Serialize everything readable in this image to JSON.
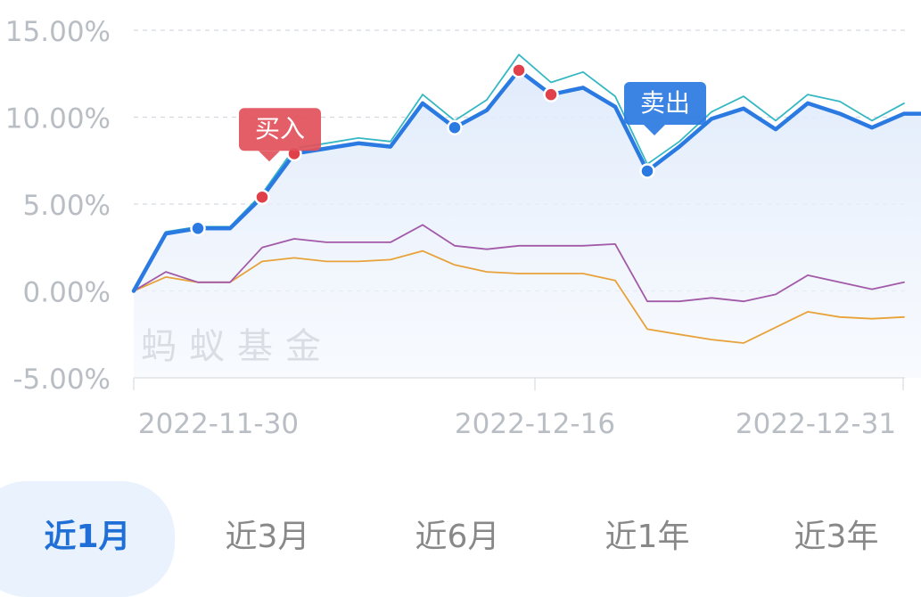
{
  "chart_data": {
    "type": "line",
    "x_ticks": [
      "2022-11-30",
      "2022-12-16",
      "2022-12-31"
    ],
    "y_ticks": [
      "15.00%",
      "10.00%",
      "5.00%",
      "0.00%",
      "-5.00%"
    ],
    "ylim": [
      -5,
      15
    ],
    "grid": true,
    "watermark": "蚂蚁基金",
    "series": [
      {
        "color": "#2a7ae2",
        "values": [
          0,
          3.3,
          3.6,
          3.6,
          5.4,
          7.9,
          8.2,
          8.5,
          8.3,
          10.8,
          9.4,
          10.4,
          12.7,
          11.3,
          11.7,
          10.6,
          6.9,
          8.3,
          9.9,
          10.5,
          9.3,
          10.8,
          10.2,
          9.4,
          10.2,
          10.2
        ]
      },
      {
        "color": "#36b8c4",
        "values": [
          0,
          3.4,
          3.7,
          3.7,
          5.6,
          8.2,
          8.5,
          8.8,
          8.6,
          11.3,
          9.8,
          11.0,
          13.6,
          12.0,
          12.6,
          11.2,
          7.3,
          8.6,
          10.3,
          11.2,
          9.8,
          11.3,
          10.9,
          9.8,
          10.8
        ]
      },
      {
        "color": "#a25aa8",
        "values": [
          0,
          1.1,
          0.5,
          0.5,
          2.5,
          3.0,
          2.8,
          2.8,
          2.8,
          3.8,
          2.6,
          2.4,
          2.6,
          2.6,
          2.6,
          2.7,
          -0.6,
          -0.6,
          -0.4,
          -0.6,
          -0.2,
          0.9,
          0.5,
          0.1,
          0.5
        ]
      },
      {
        "color": "#e8a23a",
        "values": [
          0,
          0.8,
          0.5,
          0.5,
          1.7,
          1.9,
          1.7,
          1.7,
          1.8,
          2.3,
          1.5,
          1.1,
          1.0,
          1.0,
          1.0,
          0.6,
          -2.2,
          -2.5,
          -2.8,
          -3.0,
          -2.1,
          -1.2,
          -1.5,
          -1.6,
          -1.5
        ]
      }
    ],
    "markers": [
      {
        "series": 0,
        "index": 2,
        "type": "buy-range",
        "color": "#2a7ae2"
      },
      {
        "series": 0,
        "index": 4,
        "type": "buy",
        "color": "#e0404a"
      },
      {
        "series": 0,
        "index": 5,
        "type": "buy",
        "color": "#e0404a"
      },
      {
        "series": 0,
        "index": 10,
        "type": "sell",
        "color": "#2a7ae2"
      },
      {
        "series": 0,
        "index": 12,
        "type": "buy",
        "color": "#e0404a"
      },
      {
        "series": 0,
        "index": 13,
        "type": "buy",
        "color": "#e0404a"
      },
      {
        "series": 0,
        "index": 16,
        "type": "sell",
        "color": "#2a7ae2"
      }
    ],
    "callouts": [
      {
        "label": "买入",
        "color": "#e2505a",
        "series": 0,
        "index": 4
      },
      {
        "label": "卖出",
        "color": "#2a7ae2",
        "series": 0,
        "index": 16
      }
    ]
  },
  "tabs": [
    {
      "label": "近1月",
      "active": true
    },
    {
      "label": "近3月",
      "active": false
    },
    {
      "label": "近6月",
      "active": false
    },
    {
      "label": "近1年",
      "active": false
    },
    {
      "label": "近3年",
      "active": false
    }
  ]
}
